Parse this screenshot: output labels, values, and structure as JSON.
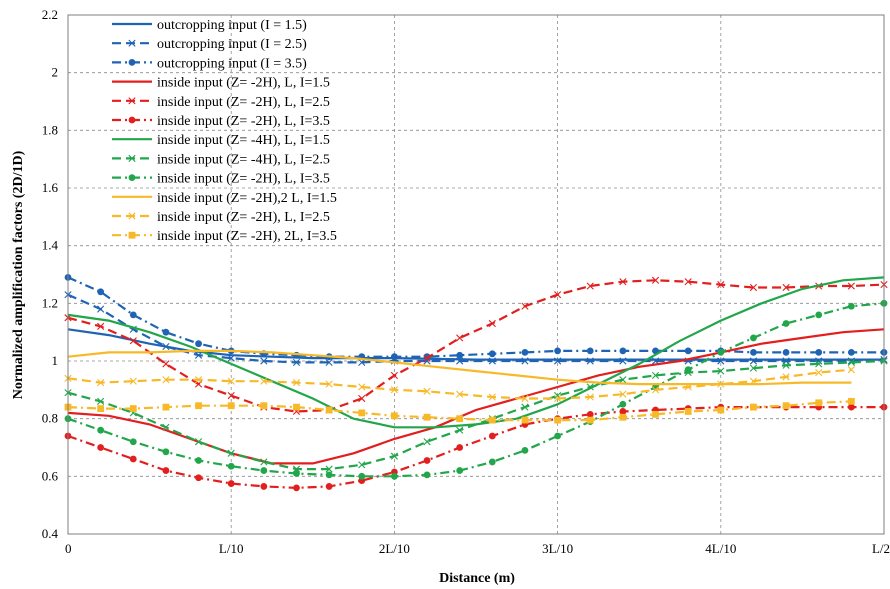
{
  "chart_data": {
    "type": "line",
    "title": "",
    "xlabel": "Distance (m)",
    "ylabel": "Normalized amplification factors (2D/1D)",
    "xlim": [
      0,
      5
    ],
    "ylim": [
      0.4,
      2.2
    ],
    "yticks": [
      0.4,
      0.6,
      0.8,
      1,
      1.2,
      1.4,
      1.6,
      1.8,
      2,
      2.2
    ],
    "xticks": [
      0,
      1,
      2,
      3,
      4,
      5
    ],
    "xtick_labels": [
      "0",
      "L/10",
      "2L/10",
      "3L/10",
      "4L/10",
      "L/2"
    ],
    "grid": "dashed",
    "legend_position": "top-left",
    "series": [
      {
        "name": "outcropping input (I = 1.5)",
        "color": "#1f64b4",
        "dash": "solid",
        "marker": "none",
        "x": [
          0,
          0.25,
          0.5,
          0.75,
          1,
          1.25,
          1.5,
          1.75,
          2,
          2.5,
          3,
          3.5,
          4,
          4.5,
          5
        ],
        "y": [
          1.11,
          1.09,
          1.06,
          1.035,
          1.02,
          1.015,
          1.01,
          1.01,
          1.01,
          1.005,
          1.005,
          1.005,
          1.005,
          1.005,
          1.005
        ]
      },
      {
        "name": "outcropping input (I = 2.5)",
        "color": "#1f64b4",
        "dash": "dash",
        "marker": "x",
        "x": [
          0,
          0.2,
          0.4,
          0.6,
          0.8,
          1,
          1.2,
          1.4,
          1.6,
          1.8,
          2,
          2.2,
          2.4,
          2.6,
          2.8,
          3,
          3.2,
          3.4,
          3.6,
          3.8,
          4,
          4.2,
          4.4,
          4.6,
          4.8,
          5
        ],
        "y": [
          1.23,
          1.18,
          1.11,
          1.05,
          1.02,
          1.01,
          1.0,
          0.995,
          0.995,
          0.995,
          1.0,
          1.0,
          1.0,
          1.0,
          1.0,
          1.0,
          1.0,
          1.0,
          1.0,
          1.0,
          1.0,
          1.0,
          1.0,
          1.0,
          1.0,
          1.005
        ]
      },
      {
        "name": "outcropping input (I = 3.5)",
        "color": "#1f64b4",
        "dash": "dashdot",
        "marker": "circle",
        "x": [
          0,
          0.2,
          0.4,
          0.6,
          0.8,
          1,
          1.2,
          1.4,
          1.6,
          1.8,
          2,
          2.2,
          2.4,
          2.6,
          2.8,
          3,
          3.2,
          3.4,
          3.6,
          3.8,
          4,
          4.2,
          4.4,
          4.6,
          4.8,
          5
        ],
        "y": [
          1.29,
          1.24,
          1.16,
          1.1,
          1.06,
          1.035,
          1.025,
          1.02,
          1.015,
          1.015,
          1.015,
          1.015,
          1.02,
          1.025,
          1.03,
          1.035,
          1.035,
          1.035,
          1.035,
          1.035,
          1.035,
          1.03,
          1.03,
          1.03,
          1.03,
          1.03
        ]
      },
      {
        "name": "inside input (Z= -2H), L, I=1.5",
        "color": "#e31e1e",
        "dash": "solid",
        "marker": "none",
        "x": [
          0,
          0.25,
          0.5,
          0.75,
          1,
          1.25,
          1.5,
          1.75,
          2,
          2.25,
          2.5,
          2.75,
          3,
          3.25,
          3.5,
          3.75,
          4,
          4.25,
          4.5,
          4.75,
          5
        ],
        "y": [
          0.82,
          0.81,
          0.78,
          0.73,
          0.68,
          0.645,
          0.645,
          0.68,
          0.73,
          0.77,
          0.83,
          0.87,
          0.91,
          0.95,
          0.98,
          1.0,
          1.03,
          1.06,
          1.08,
          1.1,
          1.11
        ]
      },
      {
        "name": "inside input (Z= -2H), L, I=2.5",
        "color": "#e31e1e",
        "dash": "dash",
        "marker": "x",
        "x": [
          0,
          0.2,
          0.4,
          0.6,
          0.8,
          1,
          1.2,
          1.4,
          1.6,
          1.8,
          2,
          2.2,
          2.4,
          2.6,
          2.8,
          3,
          3.2,
          3.4,
          3.6,
          3.8,
          4,
          4.2,
          4.4,
          4.6,
          4.8,
          5
        ],
        "y": [
          1.15,
          1.12,
          1.07,
          0.99,
          0.92,
          0.88,
          0.84,
          0.825,
          0.83,
          0.87,
          0.95,
          1.01,
          1.08,
          1.13,
          1.19,
          1.23,
          1.26,
          1.275,
          1.28,
          1.275,
          1.265,
          1.255,
          1.255,
          1.26,
          1.26,
          1.265
        ]
      },
      {
        "name": "inside input (Z= -2H), L, I=3.5",
        "color": "#e31e1e",
        "dash": "dashdot",
        "marker": "circle",
        "x": [
          0,
          0.2,
          0.4,
          0.6,
          0.8,
          1,
          1.2,
          1.4,
          1.6,
          1.8,
          2,
          2.2,
          2.4,
          2.6,
          2.8,
          3,
          3.2,
          3.4,
          3.6,
          3.8,
          4,
          4.2,
          4.4,
          4.6,
          4.8,
          5
        ],
        "y": [
          0.74,
          0.7,
          0.66,
          0.62,
          0.595,
          0.575,
          0.565,
          0.56,
          0.565,
          0.585,
          0.615,
          0.655,
          0.7,
          0.74,
          0.78,
          0.8,
          0.815,
          0.825,
          0.83,
          0.835,
          0.84,
          0.84,
          0.84,
          0.84,
          0.84,
          0.84
        ]
      },
      {
        "name": "inside input (Z= -4H), L, I=1.5",
        "color": "#22a64a",
        "dash": "solid",
        "marker": "none",
        "x": [
          0,
          0.25,
          0.5,
          0.75,
          1,
          1.25,
          1.5,
          1.75,
          2,
          2.25,
          2.5,
          2.75,
          3,
          3.25,
          3.5,
          3.75,
          4,
          4.25,
          4.5,
          4.75,
          5
        ],
        "y": [
          1.16,
          1.14,
          1.1,
          1.05,
          0.99,
          0.93,
          0.87,
          0.8,
          0.77,
          0.77,
          0.78,
          0.8,
          0.85,
          0.92,
          0.99,
          1.07,
          1.14,
          1.2,
          1.25,
          1.28,
          1.29
        ]
      },
      {
        "name": "inside input (Z= -4H), L, I=2.5",
        "color": "#22a64a",
        "dash": "dash",
        "marker": "x",
        "x": [
          0,
          0.2,
          0.4,
          0.6,
          0.8,
          1,
          1.2,
          1.4,
          1.6,
          1.8,
          2,
          2.2,
          2.4,
          2.6,
          2.8,
          3,
          3.2,
          3.4,
          3.6,
          3.8,
          4,
          4.2,
          4.4,
          4.6,
          4.8,
          5
        ],
        "y": [
          0.89,
          0.86,
          0.82,
          0.77,
          0.72,
          0.68,
          0.65,
          0.625,
          0.625,
          0.64,
          0.67,
          0.72,
          0.76,
          0.8,
          0.84,
          0.88,
          0.91,
          0.935,
          0.95,
          0.96,
          0.965,
          0.975,
          0.985,
          0.99,
          0.995,
          1.0
        ]
      },
      {
        "name": "inside input (Z= -2H), L, I=3.5",
        "color": "#22a64a",
        "dash": "dashdot",
        "marker": "circle",
        "x": [
          0,
          0.2,
          0.4,
          0.6,
          0.8,
          1,
          1.2,
          1.4,
          1.6,
          1.8,
          2,
          2.2,
          2.4,
          2.6,
          2.8,
          3,
          3.2,
          3.4,
          3.6,
          3.8,
          4,
          4.2,
          4.4,
          4.6,
          4.8,
          5
        ],
        "y": [
          0.8,
          0.76,
          0.72,
          0.685,
          0.655,
          0.635,
          0.62,
          0.61,
          0.605,
          0.6,
          0.6,
          0.605,
          0.62,
          0.65,
          0.69,
          0.74,
          0.79,
          0.85,
          0.91,
          0.97,
          1.03,
          1.08,
          1.13,
          1.16,
          1.19,
          1.2
        ]
      },
      {
        "name": "inside input (Z= -2H),2 L, I=1.5",
        "color": "#f7b928",
        "dash": "solid",
        "marker": "none",
        "x": [
          0,
          0.25,
          0.5,
          0.75,
          1,
          1.25,
          1.5,
          1.75,
          2,
          2.25,
          2.5,
          2.75,
          3,
          3.25,
          3.5,
          3.75,
          4,
          4.25,
          4.5,
          4.8
        ],
        "y": [
          1.015,
          1.03,
          1.03,
          1.035,
          1.035,
          1.03,
          1.02,
          1.01,
          0.995,
          0.98,
          0.965,
          0.95,
          0.935,
          0.925,
          0.92,
          0.92,
          0.92,
          0.92,
          0.925,
          0.925
        ]
      },
      {
        "name": "inside input (Z= -2H), L, I=2.5",
        "color": "#f7b928",
        "dash": "dash",
        "marker": "x",
        "x": [
          0,
          0.2,
          0.4,
          0.6,
          0.8,
          1,
          1.2,
          1.4,
          1.6,
          1.8,
          2,
          2.2,
          2.4,
          2.6,
          2.8,
          3,
          3.2,
          3.4,
          3.6,
          3.8,
          4,
          4.2,
          4.4,
          4.6,
          4.8
        ],
        "y": [
          0.94,
          0.925,
          0.93,
          0.935,
          0.935,
          0.93,
          0.93,
          0.925,
          0.92,
          0.91,
          0.9,
          0.895,
          0.885,
          0.875,
          0.87,
          0.87,
          0.875,
          0.885,
          0.9,
          0.91,
          0.92,
          0.93,
          0.945,
          0.96,
          0.97
        ]
      },
      {
        "name": "inside input (Z= -2H), 2L, I=3.5",
        "color": "#f7b928",
        "dash": "dashdot",
        "marker": "square",
        "x": [
          0,
          0.2,
          0.4,
          0.6,
          0.8,
          1,
          1.2,
          1.4,
          1.6,
          1.8,
          2,
          2.2,
          2.4,
          2.6,
          2.8,
          3,
          3.2,
          3.4,
          3.6,
          3.8,
          4,
          4.2,
          4.4,
          4.6,
          4.8
        ],
        "y": [
          0.84,
          0.835,
          0.835,
          0.84,
          0.845,
          0.845,
          0.845,
          0.84,
          0.83,
          0.82,
          0.81,
          0.805,
          0.8,
          0.795,
          0.795,
          0.795,
          0.795,
          0.805,
          0.815,
          0.825,
          0.83,
          0.84,
          0.845,
          0.855,
          0.86
        ]
      }
    ]
  }
}
